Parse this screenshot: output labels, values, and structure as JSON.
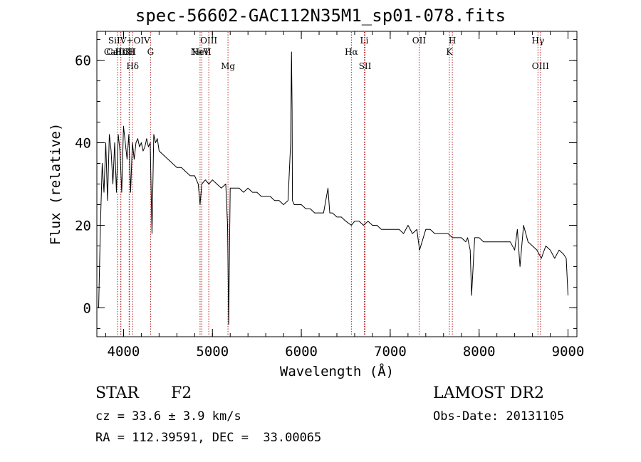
{
  "title": "spec-56602-GAC112N35M1_sp01-078.fits",
  "info": {
    "class": "STAR",
    "subclass": "F2",
    "survey": "LAMOST DR2",
    "cz": "cz = 33.6 ± 3.9 km/s",
    "obs_date": "Obs-Date: 20131105",
    "coords": "RA = 112.39591, DEC =  33.00065"
  },
  "chart_data": {
    "type": "line",
    "title": "spec-56602-GAC112N35M1_sp01-078.fits",
    "xlabel": "Wavelength (Å)",
    "ylabel": "Flux (relative)",
    "xlim": [
      3700,
      9100
    ],
    "ylim": [
      -7,
      67
    ],
    "xticks": [
      4000,
      5000,
      6000,
      7000,
      8000,
      9000
    ],
    "yticks": [
      0,
      20,
      40,
      60
    ],
    "xminor_step": 200,
    "yminor_step": 5,
    "grid": false,
    "legend": "none",
    "colors": {
      "line": "#000000",
      "marker": "#b22222"
    },
    "series": [
      {
        "x": [
          3720,
          3740,
          3760,
          3780,
          3800,
          3820,
          3840,
          3860,
          3880,
          3900,
          3920,
          3940,
          3960,
          3980,
          4000,
          4020,
          4040,
          4060,
          4080,
          4100,
          4120,
          4140,
          4160,
          4180,
          4200,
          4220,
          4240,
          4260,
          4280,
          4300,
          4320,
          4340,
          4360,
          4380,
          4400,
          4450,
          4500,
          4550,
          4600,
          4650,
          4700,
          4750,
          4800,
          4840,
          4861,
          4880,
          4920,
          4960,
          5000,
          5050,
          5100,
          5150,
          5170,
          5183,
          5200,
          5250,
          5300,
          5350,
          5400,
          5450,
          5500,
          5550,
          5600,
          5650,
          5700,
          5750,
          5800,
          5850,
          5880,
          5890,
          5896,
          5900,
          5920,
          5950,
          6000,
          6050,
          6100,
          6150,
          6200,
          6250,
          6300,
          6320,
          6350,
          6400,
          6450,
          6500,
          6563,
          6600,
          6650,
          6700,
          6750,
          6800,
          6850,
          6900,
          6950,
          7000,
          7050,
          7100,
          7150,
          7200,
          7250,
          7300,
          7330,
          7400,
          7450,
          7500,
          7550,
          7600,
          7650,
          7700,
          7750,
          7800,
          7850,
          7870,
          7900,
          7915,
          7950,
          8000,
          8050,
          8100,
          8150,
          8200,
          8250,
          8300,
          8350,
          8400,
          8430,
          8460,
          8500,
          8550,
          8600,
          8650,
          8700,
          8750,
          8800,
          8850,
          8900,
          8950,
          8980,
          9000
        ],
        "y": [
          0,
          20,
          35,
          28,
          40,
          26,
          42,
          38,
          30,
          40,
          28,
          42,
          38,
          28,
          44,
          40,
          36,
          42,
          28,
          40,
          36,
          40,
          41,
          39,
          40,
          38,
          39,
          41,
          39,
          40,
          18,
          42,
          40,
          41,
          38,
          37,
          36,
          35,
          34,
          34,
          33,
          32,
          32,
          30,
          25,
          30,
          31,
          30,
          31,
          30,
          29,
          30,
          20,
          -4,
          29,
          29,
          29,
          28,
          29,
          28,
          28,
          27,
          27,
          27,
          26,
          26,
          25,
          26,
          40,
          62,
          48,
          26,
          25,
          25,
          25,
          24,
          24,
          23,
          23,
          23,
          29,
          23,
          23,
          22,
          22,
          21,
          20,
          21,
          21,
          20,
          21,
          20,
          20,
          19,
          19,
          19,
          19,
          19,
          18,
          20,
          18,
          19,
          14,
          19,
          19,
          18,
          18,
          18,
          18,
          17,
          17,
          17,
          16,
          17,
          14,
          3,
          17,
          17,
          16,
          16,
          16,
          16,
          16,
          16,
          16,
          14,
          19,
          10,
          20,
          16,
          15,
          14,
          12,
          15,
          14,
          12,
          14,
          13,
          12,
          3
        ]
      }
    ],
    "lines": [
      {
        "name": "CaII K",
        "wave": 3934,
        "row": 1
      },
      {
        "name": "CaII H",
        "wave": 3969,
        "row": 1
      },
      {
        "name": "Hε",
        "wave": 3970,
        "row": 1
      },
      {
        "name": "SiIV+OIV",
        "wave": 4063,
        "row": 0
      },
      {
        "name": "CII",
        "wave": 4067,
        "row": 1
      },
      {
        "name": "Hδ",
        "wave": 4102,
        "row": 2
      },
      {
        "name": "G",
        "wave": 4304,
        "row": 1
      },
      {
        "name": "NeV",
        "wave": 4861,
        "row": 1
      },
      {
        "name": "HeII",
        "wave": 4880,
        "row": 1
      },
      {
        "name": "OIII",
        "wave": 4959,
        "row": 0
      },
      {
        "name": "Mg",
        "wave": 5175,
        "row": 2
      },
      {
        "name": "Hα",
        "wave": 6563,
        "row": 1
      },
      {
        "name": "Li",
        "wave": 6708,
        "row": 0
      },
      {
        "name": "SII",
        "wave": 6717,
        "row": 2
      },
      {
        "name": "OII",
        "wave": 7325,
        "row": 0
      },
      {
        "name": "K",
        "wave": 7665,
        "row": 1
      },
      {
        "name": "H",
        "wave": 7699,
        "row": 0
      },
      {
        "name": "Hγ",
        "wave": 8662,
        "row": 0
      },
      {
        "name": "OIII",
        "wave": 8690,
        "row": 2
      }
    ]
  }
}
